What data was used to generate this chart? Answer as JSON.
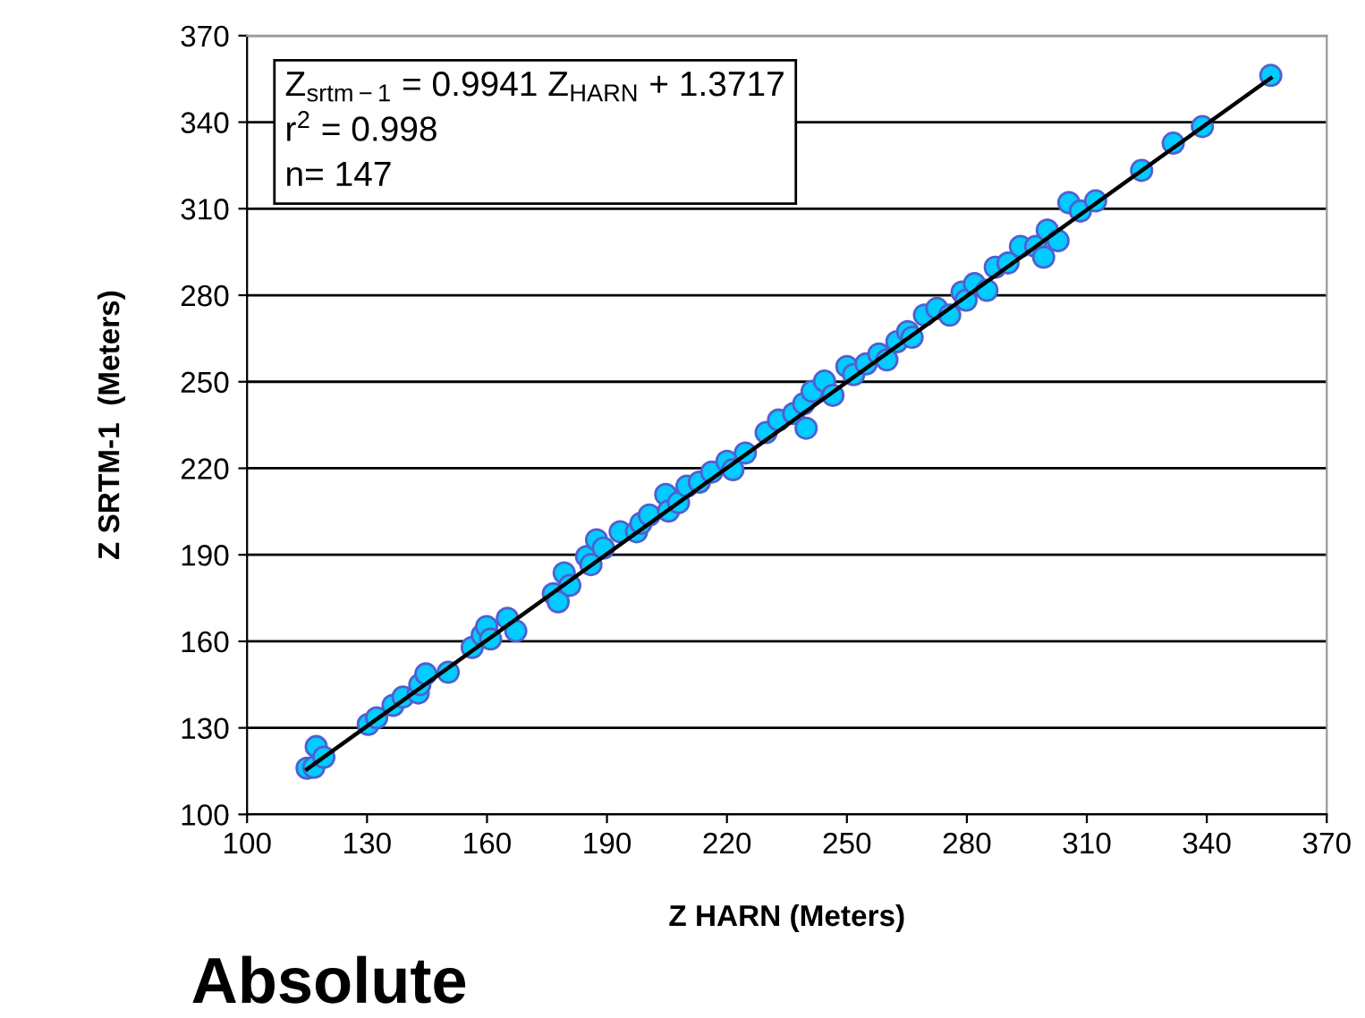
{
  "chart_data": {
    "type": "scatter",
    "title": "Absolute",
    "xlabel": "Z HARN (Meters)",
    "ylabel": "Z SRTM-1  (Meters)",
    "annotations": [
      "Z$_{srtm−1}$ = 0.9941 Z$_{HARN}$ + 1.3717",
      "r$^{2}$ = 0.998",
      "n= 147"
    ],
    "series": [
      {
        "color": "#00ccff",
        "marker": "circle",
        "x": [
          115,
          117.3,
          116.7,
          119.2,
          130.3,
          132.4,
          136.5,
          139,
          142.8,
          143.2,
          144.7,
          150.3,
          156.3,
          158.8,
          159.9,
          160.9,
          165.1,
          167.2,
          176.6,
          177.8,
          179.3,
          180.7,
          184.9,
          186,
          187.4,
          189.1,
          193.3,
          197.4,
          198.5,
          200.6,
          204.7,
          205.4,
          207.9,
          210,
          213.1,
          216.2,
          220,
          221.5,
          224.6,
          229.8,
          232.9,
          236.7,
          239.2,
          239.8,
          241.3,
          244.4,
          246.5,
          250,
          251.7,
          254.8,
          258,
          260,
          262.5,
          265.2,
          266.3,
          269.4,
          272.5,
          275.7,
          278.8,
          279.8,
          281.9,
          285,
          287.1,
          290.3,
          293.4,
          297.2,
          299.2,
          300.1,
          302.8,
          305.5,
          308.4,
          312.2,
          323.7,
          331.6,
          338.9,
          356
        ],
        "values": [
          116,
          123.5,
          116.3,
          119.8,
          131.2,
          133.5,
          137.8,
          140.7,
          142.1,
          145,
          148.7,
          149.3,
          157.9,
          162.2,
          165.1,
          160.8,
          168,
          163.6,
          176.5,
          173.7,
          183.7,
          179.4,
          189.4,
          186.6,
          195.2,
          192.3,
          198,
          198,
          200.9,
          203.8,
          210.9,
          205.2,
          208.1,
          213.8,
          215.2,
          218.7,
          222.4,
          219.5,
          225.3,
          232.4,
          236.7,
          239,
          242.4,
          233.9,
          246.7,
          250.2,
          245.3,
          255.3,
          252.5,
          256.2,
          259.6,
          257.6,
          263.9,
          267.4,
          265.4,
          273.1,
          275.4,
          273.1,
          281.1,
          278.3,
          284,
          281.7,
          289.7,
          291.2,
          296.9,
          296.9,
          293.2,
          302.6,
          298.9,
          312.1,
          309.2,
          312.7,
          323.3,
          332.7,
          338.5,
          356.2
        ]
      },
      {
        "type": "line",
        "color": "#000000",
        "marker": "none",
        "line_style": "solid",
        "x": [
          115,
          356
        ],
        "values": [
          115.7,
          355.3
        ]
      }
    ],
    "xlim": [
      100,
      370
    ],
    "xticks": [
      100,
      130,
      160,
      190,
      220,
      250,
      280,
      310,
      340,
      370
    ],
    "ylim": [
      100,
      370
    ],
    "yticks": [
      100,
      130,
      160,
      190,
      220,
      250,
      280,
      310,
      340,
      370
    ],
    "grid": "y",
    "legend": false
  }
}
